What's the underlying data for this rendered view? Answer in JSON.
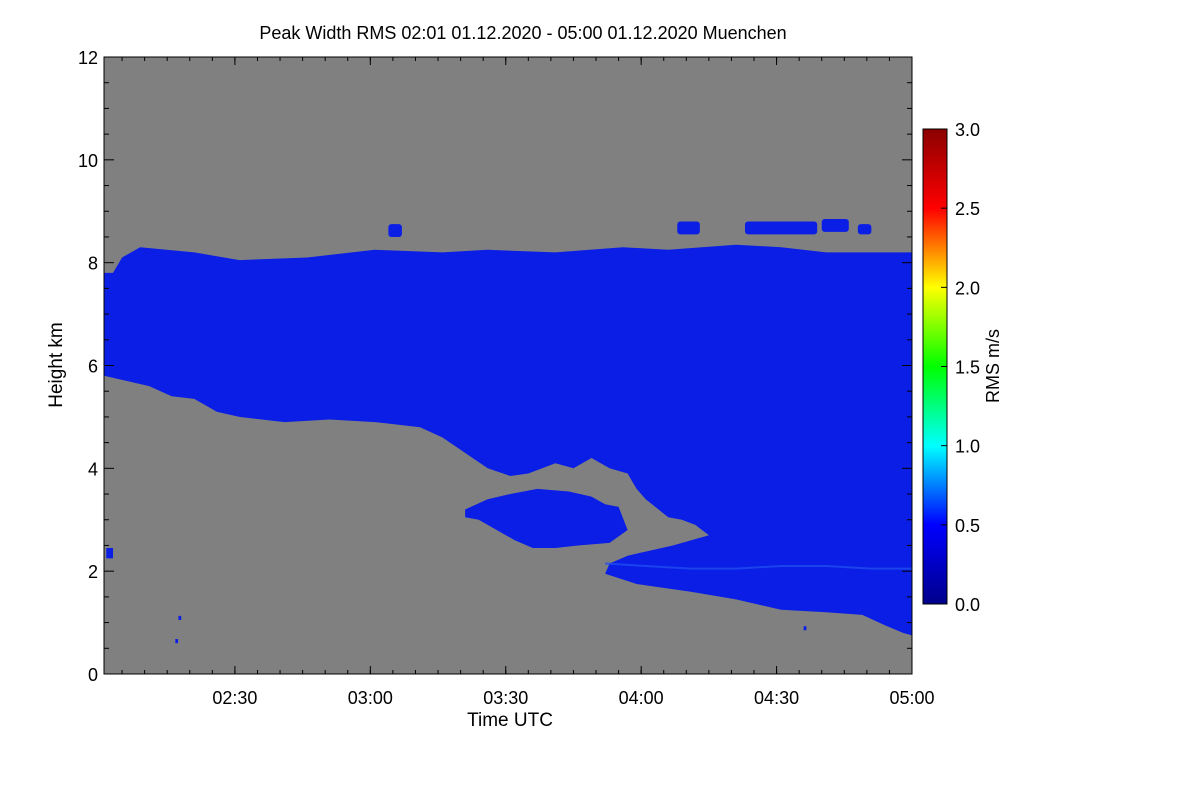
{
  "chart_data": {
    "type": "heatmap",
    "title": "Peak Width RMS   02:01 01.12.2020 - 05:00 01.12.2020 Muenchen",
    "xlabel": "Time UTC",
    "ylabel": "Height km",
    "xlim": [
      "02:01",
      "05:00"
    ],
    "x_tick_labels": [
      "02:30",
      "03:00",
      "03:30",
      "04:00",
      "04:30",
      "05:00"
    ],
    "x_tick_values_min": [
      29,
      59,
      89,
      119,
      149,
      179
    ],
    "ylim": [
      0,
      12
    ],
    "y_ticks": [
      0,
      2,
      4,
      6,
      8,
      10,
      12
    ],
    "background_color": "#808080",
    "grid": false,
    "colorbar": {
      "label": "RMS m/s",
      "range": [
        0.0,
        3.0
      ],
      "tick_labels": [
        "0.0",
        "0.5",
        "1.0",
        "1.5",
        "2.0",
        "2.5",
        "3.0"
      ],
      "tick_values": [
        0.0,
        0.5,
        1.0,
        1.5,
        2.0,
        2.5,
        3.0
      ],
      "colormap": [
        "#00008b",
        "#0000ff",
        "#00ffff",
        "#00ff00",
        "#ffff00",
        "#ff0000",
        "#8b0000"
      ]
    },
    "echo_color_main": "#0a1ee6",
    "echo_color_light": "#1e4cf0",
    "echo_regions": {
      "main_layer": {
        "top_km": [
          [
            0,
            7.8
          ],
          [
            2,
            7.8
          ],
          [
            4,
            8.1
          ],
          [
            8,
            8.3
          ],
          [
            20,
            8.2
          ],
          [
            30,
            8.05
          ],
          [
            45,
            8.1
          ],
          [
            60,
            8.25
          ],
          [
            75,
            8.2
          ],
          [
            85,
            8.25
          ],
          [
            100,
            8.2
          ],
          [
            115,
            8.3
          ],
          [
            125,
            8.25
          ],
          [
            140,
            8.35
          ],
          [
            150,
            8.3
          ],
          [
            160,
            8.2
          ],
          [
            170,
            8.2
          ],
          [
            179,
            8.2
          ]
        ],
        "bottom_km": [
          [
            0,
            5.8
          ],
          [
            10,
            5.6
          ],
          [
            15,
            5.4
          ],
          [
            20,
            5.35
          ],
          [
            25,
            5.1
          ],
          [
            30,
            5.0
          ],
          [
            40,
            4.9
          ],
          [
            50,
            4.95
          ],
          [
            60,
            4.9
          ],
          [
            65,
            4.85
          ],
          [
            70,
            4.8
          ],
          [
            75,
            4.6
          ],
          [
            80,
            4.3
          ],
          [
            85,
            4.0
          ],
          [
            90,
            3.85
          ],
          [
            94,
            3.9
          ],
          [
            100,
            4.1
          ],
          [
            104,
            4.0
          ],
          [
            108,
            4.2
          ],
          [
            112,
            4.0
          ],
          [
            116,
            3.9
          ],
          [
            118,
            3.6
          ],
          [
            120,
            3.4
          ],
          [
            125,
            3.05
          ],
          [
            128,
            3.0
          ],
          [
            131,
            2.9
          ],
          [
            134,
            2.7
          ],
          [
            126,
            2.5
          ],
          [
            116,
            2.3
          ],
          [
            112,
            2.15
          ],
          [
            111,
            1.95
          ],
          [
            118,
            1.75
          ],
          [
            130,
            1.6
          ],
          [
            140,
            1.45
          ],
          [
            150,
            1.25
          ],
          [
            160,
            1.2
          ],
          [
            168,
            1.15
          ],
          [
            173,
            0.95
          ],
          [
            177,
            0.8
          ],
          [
            179,
            0.75
          ]
        ]
      },
      "lower_branch": {
        "outline_km": [
          [
            80,
            3.2
          ],
          [
            85,
            3.4
          ],
          [
            90,
            3.5
          ],
          [
            96,
            3.6
          ],
          [
            103,
            3.55
          ],
          [
            108,
            3.45
          ],
          [
            111,
            3.3
          ],
          [
            114,
            3.25
          ],
          [
            116,
            2.8
          ],
          [
            112,
            2.55
          ],
          [
            105,
            2.5
          ],
          [
            100,
            2.45
          ],
          [
            95,
            2.45
          ],
          [
            91,
            2.6
          ],
          [
            87,
            2.8
          ],
          [
            83,
            3.0
          ],
          [
            80,
            3.05
          ]
        ]
      },
      "lower_layer_boundary_km": [
        [
          111,
          2.15
        ],
        [
          120,
          2.1
        ],
        [
          130,
          2.05
        ],
        [
          140,
          2.05
        ],
        [
          150,
          2.1
        ],
        [
          160,
          2.1
        ],
        [
          170,
          2.05
        ],
        [
          179,
          2.05
        ]
      ],
      "spots": [
        {
          "x_min": 0.5,
          "y_km": 2.25,
          "w_min": 1.5,
          "h_km": 0.2
        },
        {
          "x_min": 16.5,
          "y_km": 1.05,
          "w_min": 0.6,
          "h_km": 0.08
        },
        {
          "x_min": 15.8,
          "y_km": 0.6,
          "w_min": 0.6,
          "h_km": 0.08
        },
        {
          "x_min": 155,
          "y_km": 0.85,
          "w_min": 0.6,
          "h_km": 0.08
        }
      ],
      "cloud_top_patches": [
        {
          "x_min": 63,
          "x_max": 66,
          "y_km": 8.5,
          "h_km": 0.25
        },
        {
          "x_min": 127,
          "x_max": 132,
          "y_km": 8.55,
          "h_km": 0.25
        },
        {
          "x_min": 142,
          "x_max": 158,
          "y_km": 8.55,
          "h_km": 0.25
        },
        {
          "x_min": 159,
          "x_max": 165,
          "y_km": 8.6,
          "h_km": 0.25
        },
        {
          "x_min": 167,
          "x_max": 170,
          "y_km": 8.55,
          "h_km": 0.2
        }
      ]
    }
  }
}
